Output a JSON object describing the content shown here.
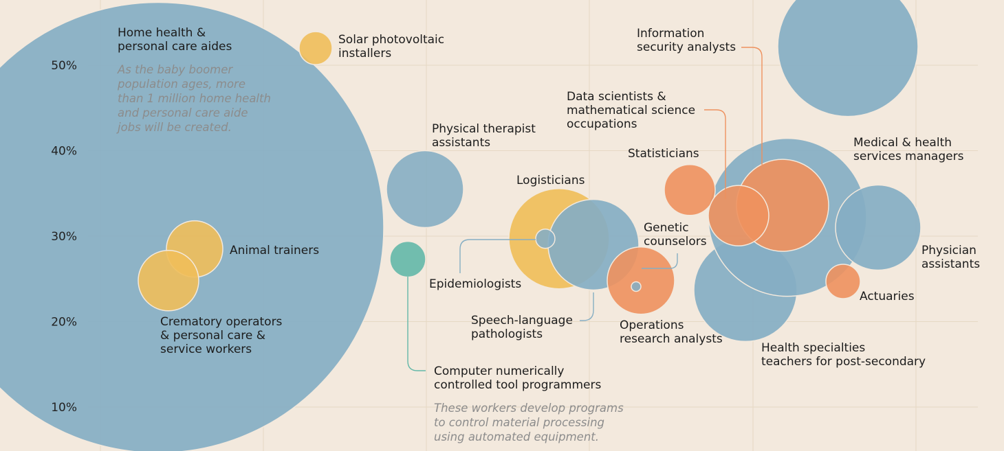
{
  "chart_data": {
    "type": "bubble",
    "ylabel": "",
    "ylim": [
      5,
      55
    ],
    "y_ticks": [
      "10%",
      "20%",
      "30%",
      "40%",
      "50%"
    ],
    "y_tick_values": [
      10,
      20,
      30,
      40,
      50
    ],
    "grid": true,
    "colors": {
      "blue": "#86aec3",
      "yellow": "#f0be5a",
      "orange": "#ee915e",
      "teal": "#63b8a8",
      "grid": "#e6d8c4",
      "background": "#f3e9dd"
    },
    "points": [
      {
        "label": [
          "Home health &",
          "personal care aides"
        ],
        "y": 31,
        "color": "blue"
      },
      {
        "label": [
          "Solar photovoltaic",
          "installers"
        ],
        "y": 52,
        "color": "yellow"
      },
      {
        "label": [
          "Animal trainers"
        ],
        "y": 28.5,
        "color": "yellow"
      },
      {
        "label": [
          "Crematory operators",
          "& personal care &",
          "service workers"
        ],
        "y": 24.8,
        "color": "yellow"
      },
      {
        "label": [
          "Physical therapist",
          "assistants"
        ],
        "y": 35.5,
        "color": "blue"
      },
      {
        "label": [
          "Computer numerically",
          "controlled tool programmers"
        ],
        "y": 27.3,
        "color": "teal"
      },
      {
        "label": [
          "Logisticians"
        ],
        "y": 29.7,
        "color": "yellow"
      },
      {
        "label": [
          "Epidemiologists"
        ],
        "y": 29.7,
        "color": "blue"
      },
      {
        "label": [
          "Speech-language",
          "pathologists"
        ],
        "y": 29,
        "color": "blue"
      },
      {
        "label": [
          "Genetic",
          "counselors"
        ],
        "y": 24.1,
        "color": "blue"
      },
      {
        "label": [
          "Operations",
          "research analysts"
        ],
        "y": 24.8,
        "color": "orange"
      },
      {
        "label": [
          "Statisticians"
        ],
        "y": 35.4,
        "color": "orange"
      },
      {
        "label": [
          "Data scientists &",
          "mathematical science",
          "occupations"
        ],
        "y": 32.4,
        "color": "orange"
      },
      {
        "label": [
          "Information",
          "security analysts"
        ],
        "y": 33.6,
        "color": "orange"
      },
      {
        "label": [
          "Medical & health",
          "services managers"
        ],
        "y": 32.2,
        "color": "blue"
      },
      {
        "label": [
          "Health specialties",
          "teachers for post-secondary"
        ],
        "y": 23.7,
        "color": "blue"
      },
      {
        "label": [
          "Physician",
          "assistants"
        ],
        "y": 31,
        "color": "blue"
      },
      {
        "label": [
          "Actuaries"
        ],
        "y": 24.7,
        "color": "orange"
      },
      {
        "label": [],
        "y": 52.2,
        "color": "blue"
      }
    ],
    "annotations": [
      {
        "target": "Home health & personal care aides",
        "text": [
          "As the baby boomer",
          "population ages, more",
          "than 1 million home health",
          "and personal care aide",
          "jobs will be created."
        ]
      },
      {
        "target": "Computer numerically controlled tool programmers",
        "text": [
          "These workers develop programs",
          "to control material processing",
          "using automated equipment."
        ]
      }
    ]
  }
}
